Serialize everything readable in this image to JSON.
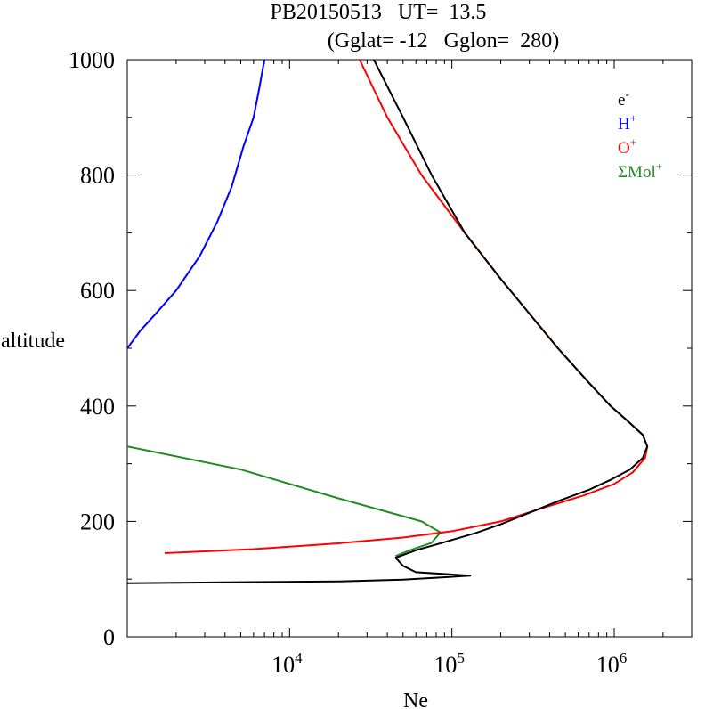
{
  "chart_data": {
    "type": "line",
    "title": "PB20150513   UT=  13.5",
    "subtitle": "(Gglat= -12   Gglon=  280)",
    "xlabel": "Ne",
    "ylabel": "altitude",
    "x_scale": "log",
    "xlim": [
      1000,
      3000000
    ],
    "ylim": [
      0,
      1000
    ],
    "x_ticks": [
      {
        "value": 10000,
        "base": "10",
        "exp": "4"
      },
      {
        "value": 100000,
        "base": "10",
        "exp": "5"
      },
      {
        "value": 1000000,
        "base": "10",
        "exp": "6"
      }
    ],
    "y_ticks": [
      {
        "value": 0,
        "label": "0"
      },
      {
        "value": 200,
        "label": "200"
      },
      {
        "value": 400,
        "label": "400"
      },
      {
        "value": 600,
        "label": "600"
      },
      {
        "value": 800,
        "label": "800"
      },
      {
        "value": 1000,
        "label": "1000"
      }
    ],
    "legend_position": "top-right",
    "series": [
      {
        "name": "e-",
        "base": "e",
        "sup": "-",
        "color": "#000000",
        "points": [
          [
            1000,
            93
          ],
          [
            20000,
            96
          ],
          [
            50000,
            99
          ],
          [
            130000,
            106
          ],
          [
            60000,
            112
          ],
          [
            50000,
            123
          ],
          [
            45000,
            137
          ],
          [
            60000,
            150
          ],
          [
            90000,
            164
          ],
          [
            140000,
            180
          ],
          [
            200000,
            195
          ],
          [
            300000,
            215
          ],
          [
            450000,
            235
          ],
          [
            700000,
            255
          ],
          [
            950000,
            272
          ],
          [
            1250000,
            290
          ],
          [
            1500000,
            310
          ],
          [
            1600000,
            330
          ],
          [
            1500000,
            350
          ],
          [
            1200000,
            375
          ],
          [
            950000,
            400
          ],
          [
            700000,
            440
          ],
          [
            450000,
            500
          ],
          [
            300000,
            560
          ],
          [
            200000,
            620
          ],
          [
            120000,
            700
          ],
          [
            75000,
            800
          ],
          [
            50000,
            900
          ],
          [
            33000,
            1000
          ]
        ]
      },
      {
        "name": "H+",
        "base": "H",
        "sup": "+",
        "color": "#0000ff",
        "points": [
          [
            1000,
            500
          ],
          [
            1200,
            530
          ],
          [
            1500,
            560
          ],
          [
            2000,
            600
          ],
          [
            2800,
            660
          ],
          [
            3600,
            720
          ],
          [
            4400,
            780
          ],
          [
            5200,
            850
          ],
          [
            6000,
            900
          ],
          [
            6500,
            950
          ],
          [
            7000,
            1000
          ]
        ]
      },
      {
        "name": "O+",
        "base": "O",
        "sup": "+",
        "color": "#ff0000",
        "points": [
          [
            1700,
            145
          ],
          [
            6000,
            152
          ],
          [
            20000,
            162
          ],
          [
            50000,
            172
          ],
          [
            100000,
            183
          ],
          [
            200000,
            200
          ],
          [
            380000,
            225
          ],
          [
            650000,
            245
          ],
          [
            1000000,
            265
          ],
          [
            1300000,
            285
          ],
          [
            1550000,
            310
          ],
          [
            1600000,
            330
          ],
          [
            1500000,
            350
          ],
          [
            1200000,
            375
          ],
          [
            950000,
            400
          ],
          [
            700000,
            440
          ],
          [
            450000,
            500
          ],
          [
            300000,
            560
          ],
          [
            200000,
            620
          ],
          [
            120000,
            700
          ],
          [
            65000,
            800
          ],
          [
            40000,
            900
          ],
          [
            27000,
            1000
          ]
        ]
      },
      {
        "name": "ΣMol+",
        "base": "ΣMol",
        "sup": "+",
        "color": "#228b22",
        "points": [
          [
            1000,
            330
          ],
          [
            5000,
            290
          ],
          [
            20000,
            240
          ],
          [
            65000,
            200
          ],
          [
            85000,
            181
          ],
          [
            75000,
            163
          ],
          [
            55000,
            150
          ],
          [
            45000,
            140
          ]
        ]
      }
    ]
  }
}
